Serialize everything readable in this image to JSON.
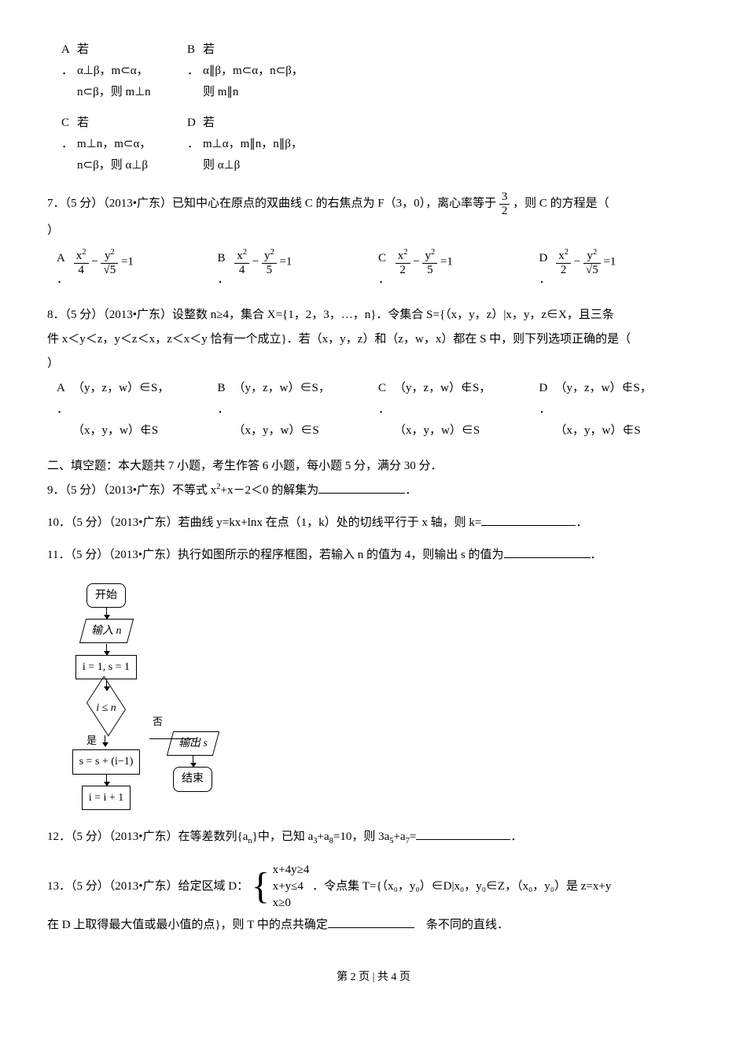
{
  "q6": {
    "opts": [
      {
        "label": "A\n．",
        "l1": "若",
        "l2": "α⊥β，m⊂α，n⊂β，则 m⊥n"
      },
      {
        "label": "B\n．",
        "l1": "若",
        "l2": "α∥β，m⊂α，n⊂β，则 m∥n"
      },
      {
        "label": "C\n．",
        "l1": "若",
        "l2": "m⊥n，m⊂α，n⊂β，则 α⊥β"
      },
      {
        "label": "D\n．",
        "l1": "若",
        "l2": "m⊥α，m∥n，n∥β，则 α⊥β"
      }
    ]
  },
  "q7": {
    "stem_a": "7．（5 分）（2013•广东）已知中心在原点的双曲线 C 的右焦点为 F（3，0），离心率等于",
    "stem_b": "，则 C 的方程是（",
    "close": "）",
    "ecc_n": "3",
    "ecc_d": "2",
    "opts": {
      "A": {
        "a_n": "x",
        "a_d": "4",
        "b_n": "y",
        "b_d": "√5"
      },
      "B": {
        "a_n": "x",
        "a_d": "4",
        "b_n": "y",
        "b_d": "5"
      },
      "C": {
        "a_n": "x",
        "a_d": "2",
        "b_n": "y",
        "b_d": "5"
      },
      "D": {
        "a_n": "x",
        "a_d": "2",
        "b_n": "y",
        "b_d": "√5"
      }
    }
  },
  "q8": {
    "stem1": "8．（5 分）（2013•广东）设整数 n≥4，集合 X={1，2，3，…，n}．令集合 S={（x，y，z）|x，y，z∈X，且三条",
    "stem2": "件 x＜y＜z，y＜z＜x，z＜x＜y 恰有一个成立}．若（x，y，z）和（z，w，x）都在 S 中，则下列选项正确的是（",
    "close": "）",
    "r1": [
      "A\n．",
      "（y，z，w）∈S，",
      "B\n．",
      "（y，z，w）∈S，",
      "C\n．",
      "（y，z，w）∉S，",
      "D\n．",
      "（y，z，w）∉S，"
    ],
    "r2": [
      "（x，y，w）∉S",
      "（x，y，w）∈S",
      "（x，y，w）∈S",
      "（x，y，w）∉S"
    ]
  },
  "sec2": "二、填空题：本大题共 7 小题，考生作答 6 小题，每小题 5 分，满分 30 分．",
  "q9": {
    "a": "9．（5 分）（2013•广东）不等式 x",
    "b": "+x－2＜0 的解集为",
    "blank_w": 110,
    "tail": "．"
  },
  "q10": {
    "a": "10．（5 分）（2013•广东）若曲线 y=kx+lnx 在点（1，k）处的切线平行于 x 轴，则 k=",
    "blank_w": 120,
    "tail": "．"
  },
  "q11": {
    "a": "11．（5 分）（2013•广东）执行如图所示的程序框图，若输入 n 的值为 4，则输出 s 的值为",
    "blank_w": 110,
    "tail": "．"
  },
  "fc": {
    "start": "开始",
    "input": "输入 n",
    "init": "i = 1, s = 1",
    "cond": "i ≤ n",
    "yes": "是",
    "no": "否",
    "body": "s = s + (i−1)",
    "inc": "i = i + 1",
    "out": "输出 s",
    "end": "结束",
    "colors": {
      "line": "#000000",
      "bg": "#ffffff"
    },
    "font_size": 14
  },
  "q12": {
    "a": "12．（5 分）（2013•广东）在等差数列{a",
    "b": "}中，已知 a",
    "c": "+a",
    "d": "=10，则 3a",
    "e": "+a",
    "f": "=",
    "blank_w": 120,
    "tail": "．",
    "sub_n": "n",
    "sub_3": "3",
    "sub_8": "8",
    "sub_5": "5",
    "sub_7": "7"
  },
  "q13": {
    "a": "13．（5 分）（2013•广东）给定区域 D：",
    "sys": [
      "x+4y≥4",
      "x+y≤4",
      "x≥0"
    ],
    "b": "．令点集 T={（x₀，y₀）∈D|x₀，y₀∈Z，（x₀，y₀）是 z=x+y",
    "c": "在 D 上取得最大值或最小值的点}，则 T 中的点共确定",
    "blank_w": 110,
    "tail": "　条不同的直线．"
  },
  "footer": {
    "text": "第 2 页 | 共 4 页"
  }
}
